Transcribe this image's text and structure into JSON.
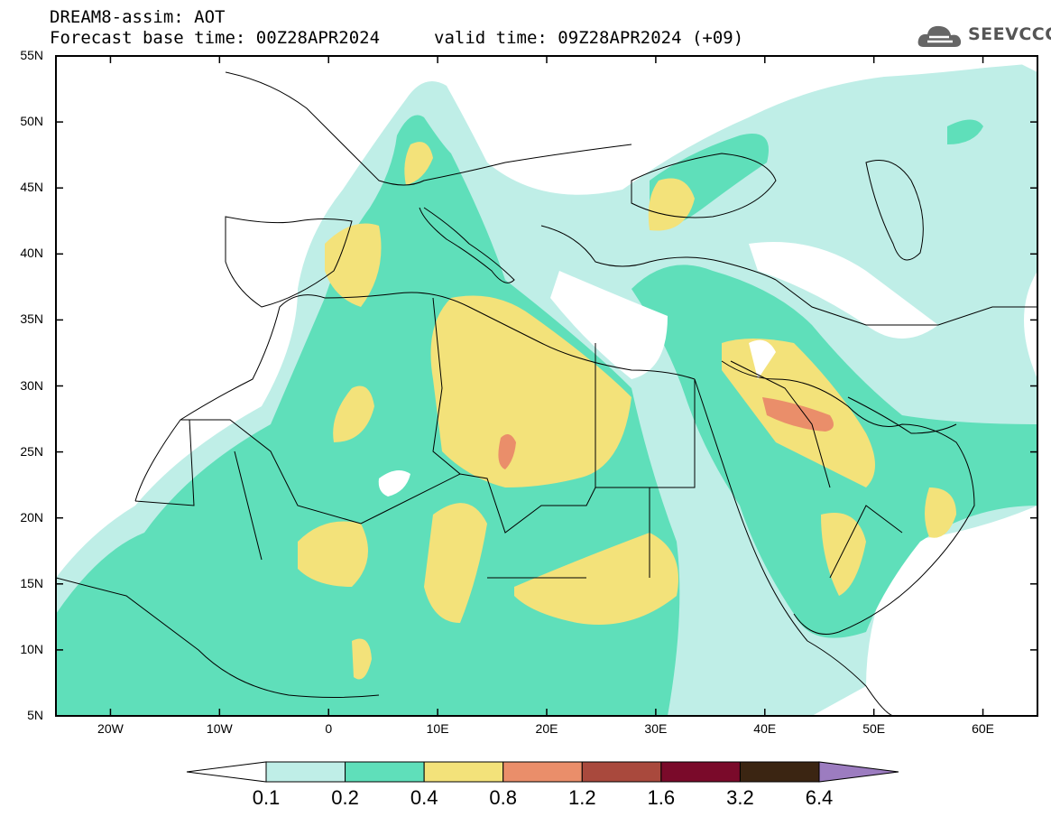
{
  "header": {
    "title": "DREAM8-assim: AOT",
    "base_time": "Forecast base time: 00Z28APR2024",
    "valid_time": "valid time: 09Z28APR2024 (+09)"
  },
  "logo": {
    "text": "SEEVCCC",
    "icon": "cloud-icon"
  },
  "map": {
    "lat_labels": [
      "55N",
      "50N",
      "45N",
      "40N",
      "35N",
      "30N",
      "25N",
      "20N",
      "15N",
      "10N",
      "5N"
    ],
    "lon_labels": [
      "20W",
      "10W",
      "0",
      "10E",
      "20E",
      "30E",
      "40E",
      "50E",
      "60E"
    ],
    "lon_range": [
      -25,
      65
    ],
    "lat_range": [
      5,
      55
    ]
  },
  "colorbar": {
    "labels": [
      "0.1",
      "0.2",
      "0.4",
      "0.8",
      "1.2",
      "1.6",
      "3.2",
      "6.4"
    ],
    "colors": [
      "#ffffff",
      "#bfeee7",
      "#5fdfba",
      "#f3e27a",
      "#ea8e6a",
      "#a9493d",
      "#7a0a2a",
      "#3b2512",
      "#9c7cc0"
    ]
  }
}
